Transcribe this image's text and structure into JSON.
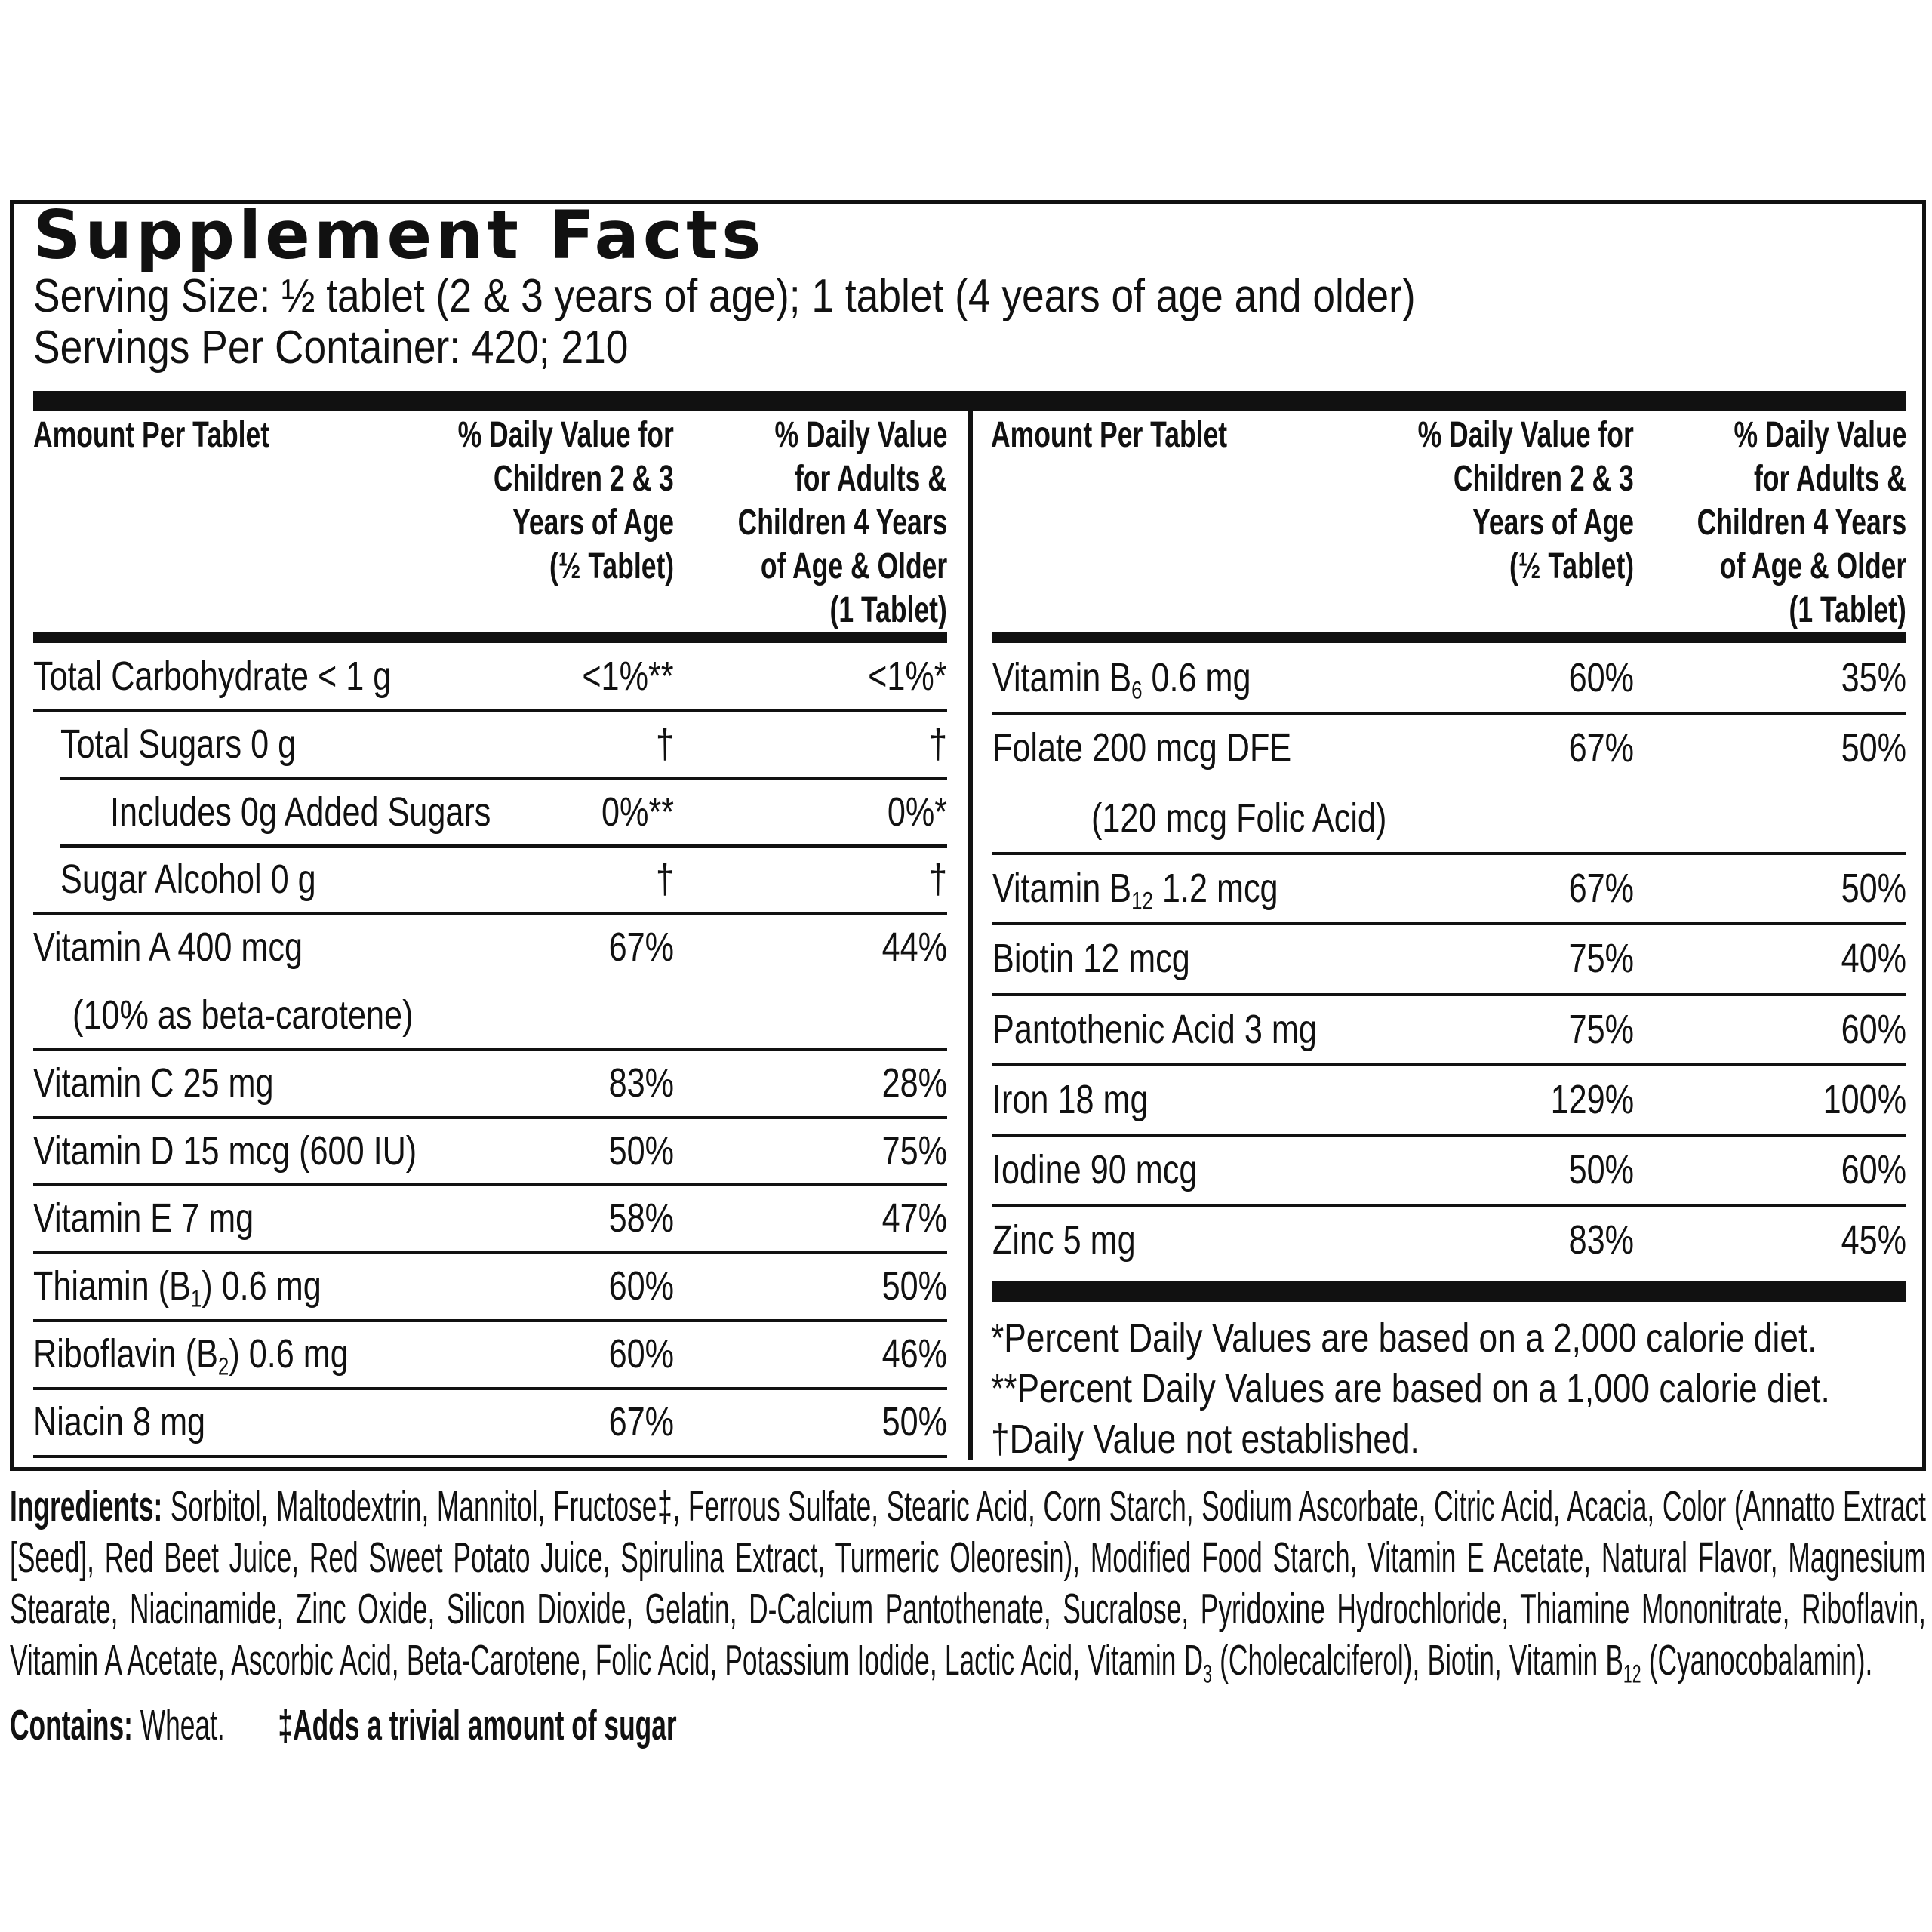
{
  "title": "Supplement Facts",
  "serving_size": "Serving Size:  ½ tablet (2 & 3 years of age); 1 tablet (4 years of age and older)",
  "servings_per_container": "Servings Per Container: 420; 210",
  "header": {
    "amount": "Amount Per Tablet",
    "children": [
      "% Daily Value for",
      "Children 2 & 3",
      "Years of Age",
      "(½ Tablet)"
    ],
    "adults": [
      "% Daily Value",
      "for Adults &",
      "Children 4 Years",
      "of Age & Older",
      "(1 Tablet)"
    ]
  },
  "left_rows": [
    {
      "name": "Total Carbohydrate < 1 g",
      "child": "<1%**",
      "adult": "<1%*"
    },
    {
      "name": "Total Sugars 0 g",
      "child": "†",
      "adult": "†"
    },
    {
      "name": "Includes 0g Added Sugars",
      "child": "0%**",
      "adult": "0%*"
    },
    {
      "name": "Sugar Alcohol 0 g",
      "child": "†",
      "adult": "†"
    },
    {
      "name": "Vitamin A 400 mcg",
      "note": "(10% as beta-carotene)",
      "child": "67%",
      "adult": "44%"
    },
    {
      "name": "Vitamin C 25 mg",
      "child": "83%",
      "adult": "28%"
    },
    {
      "name": "Vitamin D 15 mcg (600 IU)",
      "child": "50%",
      "adult": "75%"
    },
    {
      "name": "Vitamin E 7 mg",
      "child": "58%",
      "adult": "47%"
    },
    {
      "name": "Thiamin (B",
      "sub": "1",
      "name_end": ") 0.6 mg",
      "child": "60%",
      "adult": "50%"
    },
    {
      "name": "Riboflavin (B",
      "sub": "2",
      "name_end": ") 0.6 mg",
      "child": "60%",
      "adult": "46%"
    },
    {
      "name": "Niacin 8 mg",
      "child": "67%",
      "adult": "50%"
    }
  ],
  "right_rows": [
    {
      "name": "Vitamin B",
      "sub": "6",
      "name_end": " 0.6 mg",
      "child": "60%",
      "adult": "35%"
    },
    {
      "name": "Folate 200 mcg DFE",
      "note": "(120 mcg Folic Acid)",
      "child": "67%",
      "adult": "50%"
    },
    {
      "name": "Vitamin B",
      "sub": "12",
      "name_end": " 1.2 mcg",
      "child": "67%",
      "adult": "50%"
    },
    {
      "name": "Biotin 12 mcg",
      "child": "75%",
      "adult": "40%"
    },
    {
      "name": "Pantothenic Acid 3 mg",
      "child": "75%",
      "adult": "60%"
    },
    {
      "name": "Iron 18 mg",
      "child": "129%",
      "adult": "100%"
    },
    {
      "name": "Iodine 90 mcg",
      "child": "50%",
      "adult": "60%"
    },
    {
      "name": "Zinc 5 mg",
      "child": "83%",
      "adult": "45%"
    }
  ],
  "footnotes": [
    "*Percent Daily Values are based on a 2,000 calorie diet.",
    "**Percent Daily Values are based on a 1,000 calorie diet.",
    "†Daily Value not established."
  ],
  "ingredients": {
    "label": "Ingredients:",
    "parts": [
      {
        "text": "Sorbitol, Maltodextrin, Mannitol, Fructose‡, Ferrous Sulfate, Stearic Acid, Corn Starch, Sodium Ascorbate, Citric Acid, Acacia, Color (Annatto Extract [Seed], Red Beet Juice, Red Sweet Potato Juice, Spirulina Extract, Turmeric Oleoresin), Modified Food Starch, Vitamin E Acetate, Natural Flavor, Magnesium Stearate, Niacinamide, Zinc Oxide, Silicon Dioxide, Gelatin, D-Calcium Pantothenate, Sucralose, Pyridoxine Hydrochloride, Thiamine Mononitrate, Riboflavin, Vitamin A Acetate, Ascorbic Acid, Beta-Carotene, Folic Acid, Potassium Iodide, Lactic Acid, Vitamin D"
      },
      {
        "sub": "3"
      },
      {
        "text": " (Cholecalciferol), Biotin, Vitamin B"
      },
      {
        "sub": "12"
      },
      {
        "text": " (Cyanocobalamin)."
      }
    ],
    "contains_label": "Contains:",
    "contains": "Wheat.",
    "note": "‡Adds a trivial amount of sugar"
  }
}
